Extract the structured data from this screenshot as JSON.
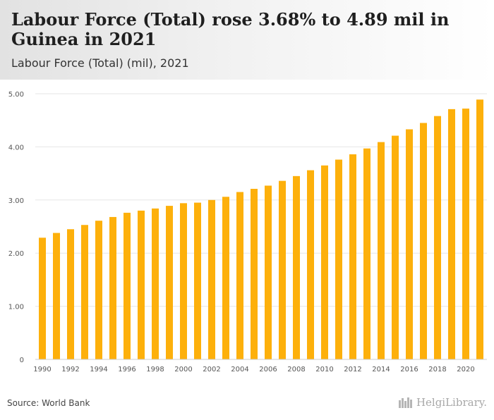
{
  "header": {
    "title": "Labour Force (Total) rose 3.68% to 4.89 mil in Guinea in 2021",
    "subtitle": "Labour Force (Total) (mil), 2021"
  },
  "footer": {
    "source": "Source: World Bank",
    "logo_text": "HelgiLibrary."
  },
  "colors": {
    "bar": "#FDB00B",
    "grid": "#e6e6e6",
    "axis_text": "#555555"
  },
  "chart_data": {
    "type": "bar",
    "title": "Labour Force (Total) rose 3.68% to 4.89 mil in Guinea in 2021",
    "subtitle": "Labour Force (Total) (mil), 2021",
    "xlabel": "",
    "ylabel": "",
    "ylim": [
      0,
      5
    ],
    "yticks": [
      "0",
      "1.00",
      "2.00",
      "3.00",
      "4.00",
      "5.00"
    ],
    "x_tick_labels": [
      "1990",
      "1992",
      "1994",
      "1996",
      "1998",
      "2000",
      "2002",
      "2004",
      "2006",
      "2008",
      "2010",
      "2012",
      "2014",
      "2016",
      "2018",
      "2020"
    ],
    "grid": true,
    "legend": "none",
    "categories": [
      "1990",
      "1991",
      "1992",
      "1993",
      "1994",
      "1995",
      "1996",
      "1997",
      "1998",
      "1999",
      "2000",
      "2001",
      "2002",
      "2003",
      "2004",
      "2005",
      "2006",
      "2007",
      "2008",
      "2009",
      "2010",
      "2011",
      "2012",
      "2013",
      "2014",
      "2015",
      "2016",
      "2017",
      "2018",
      "2019",
      "2020",
      "2021"
    ],
    "values": [
      2.29,
      2.38,
      2.45,
      2.53,
      2.61,
      2.68,
      2.76,
      2.8,
      2.84,
      2.89,
      2.94,
      2.95,
      3.0,
      3.06,
      3.15,
      3.21,
      3.27,
      3.36,
      3.45,
      3.56,
      3.65,
      3.76,
      3.86,
      3.97,
      4.09,
      4.21,
      4.33,
      4.45,
      4.58,
      4.71,
      4.72,
      4.89
    ]
  }
}
